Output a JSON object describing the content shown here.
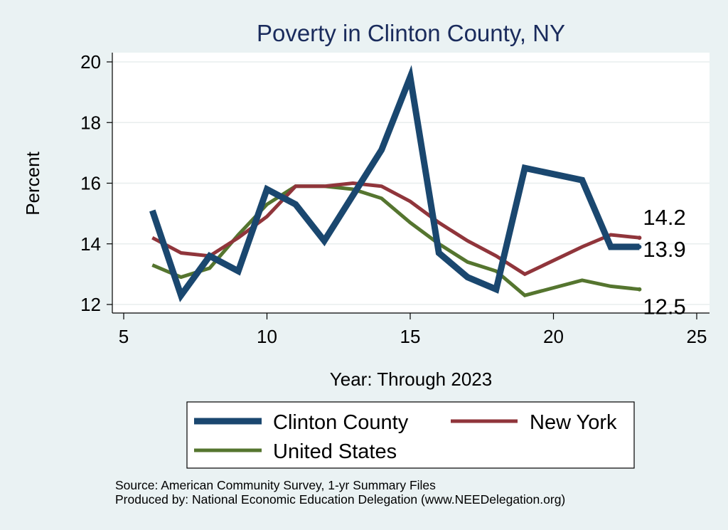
{
  "chart_data": {
    "type": "line",
    "title": "Poverty in Clinton County, NY",
    "xlabel": "Year: Through 2023",
    "ylabel": "Percent",
    "xlim": [
      5,
      25
    ],
    "ylim": [
      12,
      20
    ],
    "xticks": [
      "5",
      "10",
      "15",
      "20",
      "25"
    ],
    "yticks": [
      "12",
      "14",
      "16",
      "18",
      "20"
    ],
    "grid": true,
    "legend_position": "bottom",
    "series": [
      {
        "name": "Clinton County",
        "color": "#1a476f",
        "x": [
          6,
          7,
          8,
          9,
          10,
          11,
          12,
          13,
          14,
          15,
          16,
          17,
          18,
          19,
          21,
          22,
          23
        ],
        "values": [
          15.1,
          12.3,
          13.6,
          13.1,
          15.8,
          15.3,
          14.1,
          15.6,
          17.1,
          19.5,
          13.7,
          12.9,
          12.5,
          16.5,
          16.1,
          13.9,
          13.9
        ],
        "end_label": "13.9"
      },
      {
        "name": "New York",
        "color": "#90353b",
        "x": [
          6,
          7,
          8,
          9,
          10,
          11,
          12,
          13,
          14,
          15,
          16,
          17,
          18,
          19,
          21,
          22,
          23
        ],
        "values": [
          14.2,
          13.7,
          13.6,
          14.2,
          14.9,
          15.9,
          15.9,
          16.0,
          15.9,
          15.4,
          14.7,
          14.1,
          13.6,
          13.0,
          13.9,
          14.3,
          14.2
        ],
        "end_label": "14.2"
      },
      {
        "name": "United States",
        "color": "#55752f",
        "x": [
          6,
          7,
          8,
          9,
          10,
          11,
          12,
          13,
          14,
          15,
          16,
          17,
          18,
          19,
          21,
          22,
          23
        ],
        "values": [
          13.3,
          12.9,
          13.2,
          14.3,
          15.3,
          15.9,
          15.9,
          15.8,
          15.5,
          14.7,
          14.0,
          13.4,
          13.1,
          12.3,
          12.8,
          12.6,
          12.5
        ],
        "end_label": "12.5"
      }
    ],
    "notes": [
      "Source: American Community Survey, 1-yr Summary Files",
      "Produced by: National Economic Education Delegation (www.NEEDelegation.org)"
    ]
  }
}
